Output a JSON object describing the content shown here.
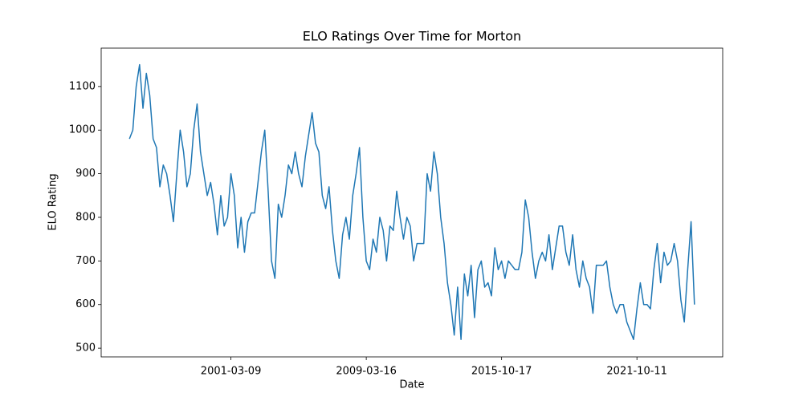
{
  "chart_data": {
    "type": "line",
    "title": "ELO Ratings Over Time for Morton",
    "x_label": "Date",
    "y_label": "ELO Rating",
    "color": "#1f77b4",
    "values": [
      980,
      1000,
      1100,
      1150,
      1050,
      1130,
      1080,
      980,
      960,
      870,
      920,
      900,
      850,
      790,
      900,
      1000,
      950,
      870,
      900,
      1000,
      1060,
      950,
      900,
      850,
      880,
      830,
      760,
      850,
      780,
      800,
      900,
      850,
      730,
      800,
      720,
      790,
      810,
      810,
      880,
      950,
      1000,
      860,
      700,
      660,
      830,
      800,
      850,
      920,
      900,
      950,
      900,
      870,
      940,
      990,
      1040,
      970,
      950,
      850,
      820,
      870,
      770,
      700,
      660,
      760,
      800,
      750,
      850,
      900,
      960,
      800,
      700,
      680,
      750,
      720,
      800,
      770,
      700,
      780,
      770,
      860,
      800,
      750,
      800,
      780,
      700,
      740,
      740,
      740,
      900,
      860,
      950,
      900,
      800,
      740,
      650,
      600,
      530,
      640,
      520,
      670,
      620,
      690,
      570,
      680,
      700,
      640,
      650,
      620,
      730,
      680,
      700,
      660,
      700,
      690,
      680,
      680,
      720,
      840,
      800,
      720,
      660,
      700,
      720,
      700,
      760,
      680,
      730,
      780,
      780,
      720,
      690,
      760,
      680,
      640,
      700,
      660,
      640,
      580,
      690,
      690,
      690,
      700,
      640,
      600,
      580,
      600,
      600,
      560,
      540,
      520,
      590,
      650,
      600,
      600,
      590,
      680,
      740,
      650,
      720,
      690,
      700,
      740,
      700,
      610,
      560,
      680,
      790,
      600
    ],
    "xlim": [
      -8.35,
      175.35
    ],
    "xticks": [
      {
        "value": 30,
        "label": "2001-03-09"
      },
      {
        "value": 70,
        "label": "2009-03-16"
      },
      {
        "value": 110,
        "label": "2015-10-17"
      },
      {
        "value": 150,
        "label": "2021-10-11"
      }
    ],
    "ylim": [
      480,
      1188
    ],
    "yticks": [
      500,
      600,
      700,
      800,
      900,
      1000,
      1100
    ]
  }
}
